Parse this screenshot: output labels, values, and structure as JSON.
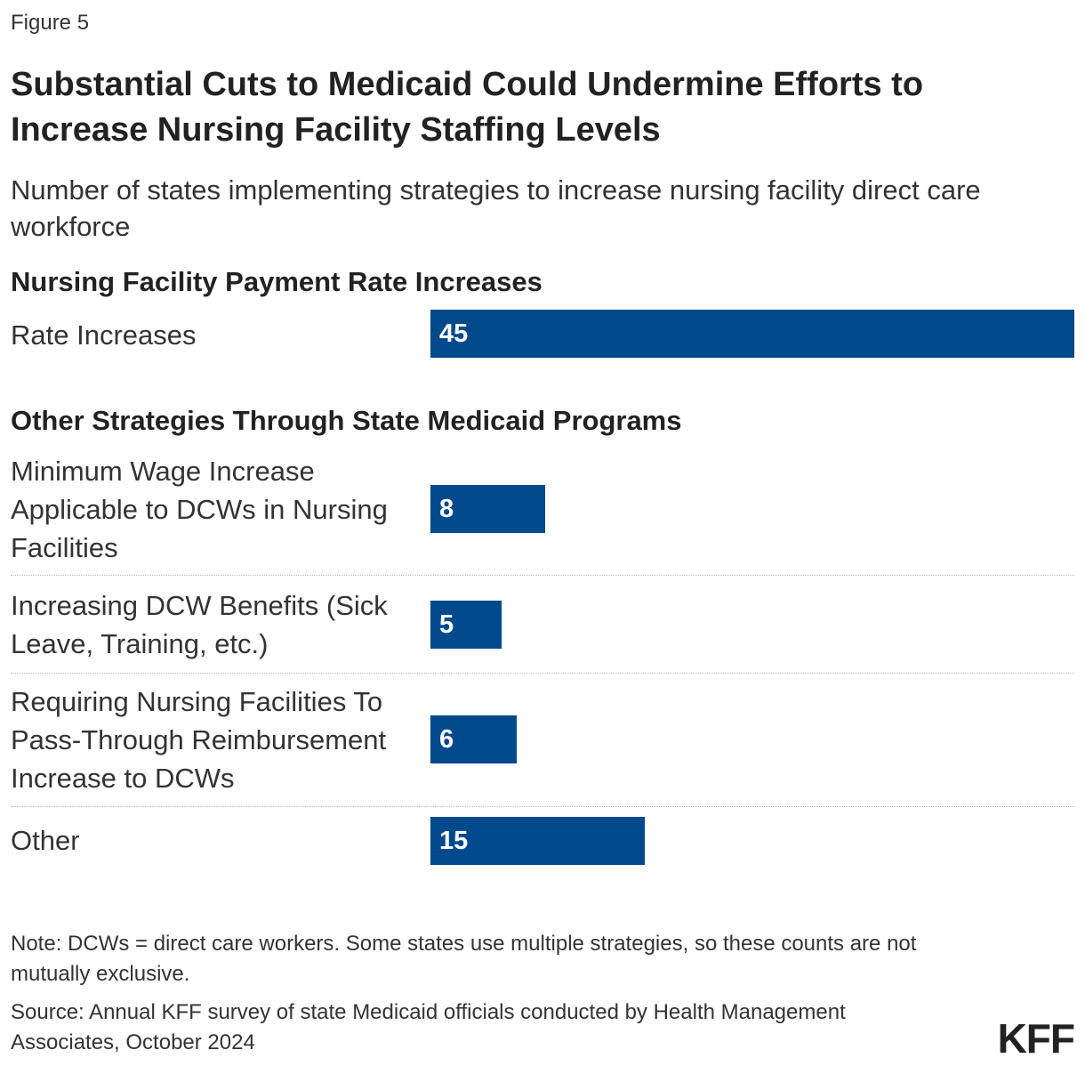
{
  "figure_label": "Figure 5",
  "title": "Substantial Cuts to Medicaid Could Undermine Efforts to Increase Nursing Facility Staffing Levels",
  "subtitle": "Number of states implementing strategies to increase nursing facility direct care workforce",
  "note": "Note: DCWs = direct care workers. Some states use multiple strategies, so these counts are not mutually exclusive.",
  "source": "Source: Annual KFF survey of state Medicaid officials conducted by Health Management Associates, October 2024",
  "logo": "KFF",
  "colors": {
    "bar": "#00498d",
    "bar_text": "#ffffff"
  },
  "chart_data": {
    "type": "bar",
    "orientation": "horizontal",
    "title": "Substantial Cuts to Medicaid Could Undermine Efforts to Increase Nursing Facility Staffing Levels",
    "subtitle": "Number of states implementing strategies to increase nursing facility direct care workforce",
    "xlabel": "",
    "ylabel": "",
    "xlim": [
      0,
      45
    ],
    "grid": false,
    "groups": [
      {
        "heading": "Nursing Facility Payment Rate Increases",
        "categories": [
          "Rate Increases"
        ],
        "values": [
          45
        ]
      },
      {
        "heading": "Other Strategies Through State Medicaid Programs",
        "categories": [
          "Minimum Wage Increase Applicable to DCWs in Nursing Facilities",
          "Increasing DCW Benefits (Sick Leave, Training, etc.)",
          "Requiring Nursing Facilities To Pass-Through Reimbursement Increase to DCWs",
          "Other"
        ],
        "values": [
          8,
          5,
          6,
          15
        ]
      }
    ]
  }
}
